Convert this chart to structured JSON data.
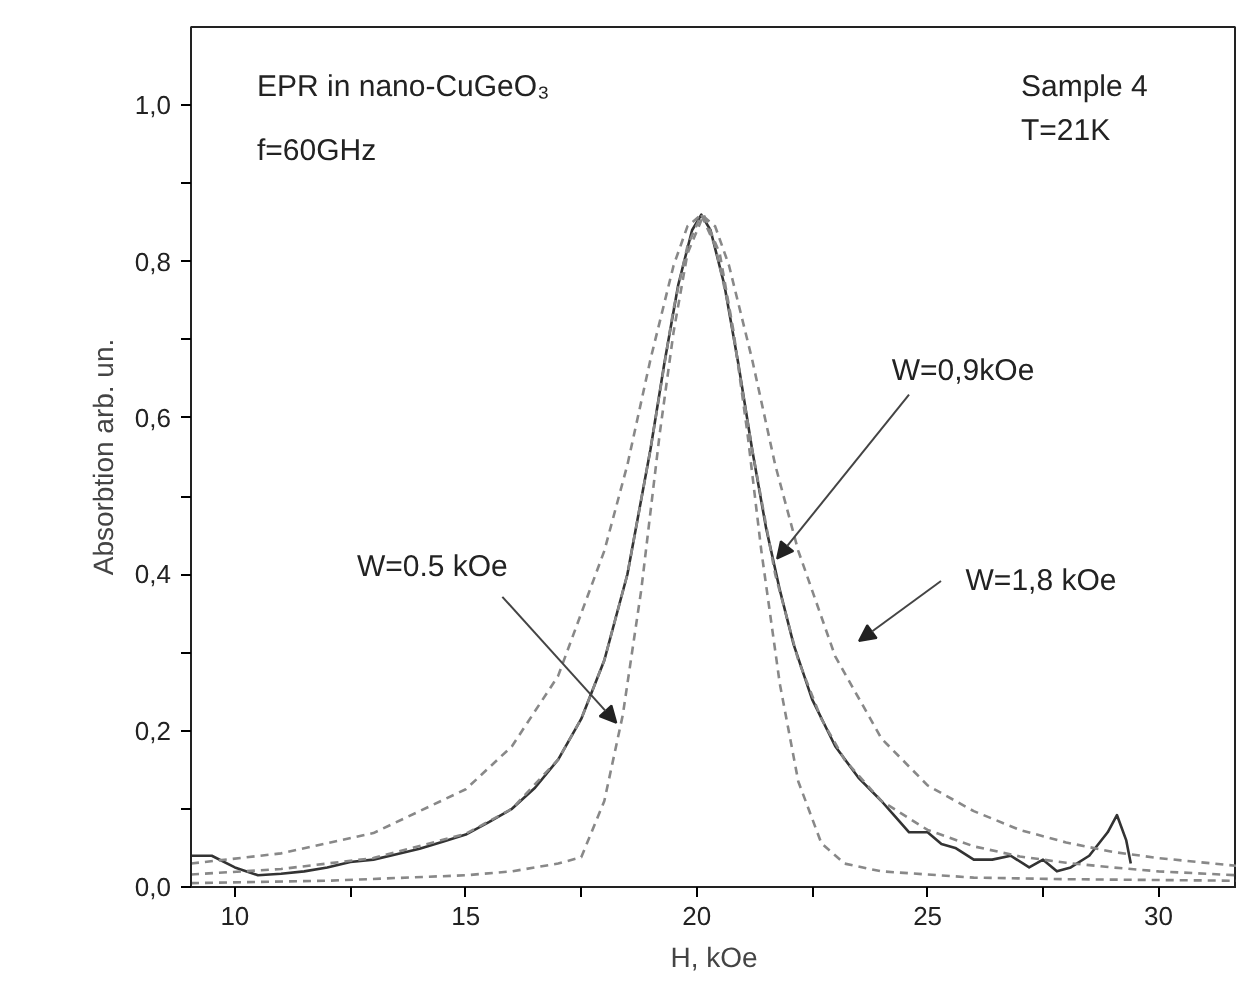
{
  "chart_data": {
    "type": "line",
    "xlabel": "H, kOe",
    "ylabel": "Absorbtion arb. un.",
    "xlim": [
      9.05,
      31.7
    ],
    "ylim": [
      0,
      1.1
    ],
    "xticks": [
      10,
      {
        "value": 12.5,
        "label": null
      },
      15,
      {
        "value": 17.5,
        "label": null
      },
      20,
      {
        "value": 22.5,
        "label": null
      },
      25,
      {
        "value": 27.5,
        "label": null
      },
      30
    ],
    "yticks": [
      {
        "value": 0,
        "label": "0,0"
      },
      {
        "value": 0.1,
        "label": null
      },
      {
        "value": 0.2,
        "label": "0,2"
      },
      {
        "value": 0.3,
        "label": null
      },
      {
        "value": 0.4,
        "label": "0,4"
      },
      {
        "value": 0.5,
        "label": null
      },
      {
        "value": 0.6,
        "label": "0,6"
      },
      {
        "value": 0.7,
        "label": null
      },
      {
        "value": 0.8,
        "label": "0,8"
      },
      {
        "value": 0.9,
        "label": null
      },
      {
        "value": 1.0,
        "label": "1,0"
      }
    ],
    "grid": false,
    "marker": "none",
    "series": [
      {
        "color": "#333333",
        "line_style": "solid",
        "x": [
          9.05,
          9.5,
          10,
          10.5,
          11,
          11.5,
          12,
          12.5,
          13,
          13.5,
          14,
          14.5,
          15,
          15.5,
          16,
          16.5,
          17,
          17.5,
          18,
          18.5,
          19,
          19.3,
          19.6,
          19.9,
          20.1,
          20.3,
          20.6,
          20.9,
          21.2,
          21.5,
          21.8,
          22.1,
          22.5,
          23,
          23.5,
          24,
          24.3,
          24.6,
          25,
          25.3,
          25.6,
          26,
          26.4,
          26.8,
          27.2,
          27.5,
          27.8,
          28.1,
          28.5,
          28.9,
          29.1,
          29.3,
          29.4
        ],
        "values": [
          0.04,
          0.04,
          0.025,
          0.015,
          0.017,
          0.02,
          0.025,
          0.032,
          0.035,
          0.042,
          0.049,
          0.058,
          0.067,
          0.083,
          0.1,
          0.127,
          0.163,
          0.215,
          0.29,
          0.4,
          0.56,
          0.67,
          0.77,
          0.84,
          0.86,
          0.84,
          0.77,
          0.67,
          0.56,
          0.46,
          0.38,
          0.31,
          0.24,
          0.18,
          0.14,
          0.11,
          0.09,
          0.07,
          0.07,
          0.055,
          0.05,
          0.035,
          0.035,
          0.04,
          0.025,
          0.035,
          0.02,
          0.025,
          0.04,
          0.07,
          0.092,
          0.06,
          0.03
        ]
      },
      {
        "color": "#888888",
        "line_style": "dashed",
        "x": [
          9.05,
          11,
          13,
          15,
          16,
          17,
          17.5,
          18,
          18.5,
          19,
          19.5,
          19.8,
          20.1,
          20.4,
          20.7,
          21.2,
          21.7,
          22.2,
          22.7,
          23.2,
          24,
          25,
          26,
          27,
          28,
          29,
          30,
          31.7
        ],
        "values": [
          0.016,
          0.023,
          0.037,
          0.068,
          0.1,
          0.163,
          0.215,
          0.29,
          0.4,
          0.56,
          0.74,
          0.82,
          0.86,
          0.82,
          0.74,
          0.56,
          0.4,
          0.29,
          0.215,
          0.163,
          0.11,
          0.073,
          0.052,
          0.039,
          0.031,
          0.025,
          0.02,
          0.015
        ]
      },
      {
        "color": "#888888",
        "line_style": "dashed",
        "x": [
          9.05,
          11,
          13,
          15,
          16,
          17,
          18,
          18.5,
          19,
          19.5,
          19.8,
          20.1,
          20.4,
          20.7,
          21.2,
          21.7,
          22.2,
          23,
          24,
          25,
          26,
          27,
          28,
          29,
          30,
          31.7
        ],
        "values": [
          0.03,
          0.043,
          0.069,
          0.125,
          0.18,
          0.27,
          0.43,
          0.54,
          0.675,
          0.795,
          0.845,
          0.86,
          0.845,
          0.795,
          0.675,
          0.54,
          0.43,
          0.295,
          0.19,
          0.13,
          0.097,
          0.073,
          0.057,
          0.045,
          0.037,
          0.027
        ]
      },
      {
        "color": "#888888",
        "line_style": "dashed",
        "x": [
          9.05,
          12,
          15,
          16,
          17,
          17.5,
          18,
          18.4,
          18.8,
          19.2,
          19.5,
          19.8,
          20.15,
          20.5,
          20.8,
          21.1,
          21.4,
          21.8,
          22.2,
          22.7,
          23.2,
          24,
          26,
          28,
          31.7
        ],
        "values": [
          0.005,
          0.008,
          0.015,
          0.02,
          0.03,
          0.038,
          0.11,
          0.22,
          0.38,
          0.58,
          0.71,
          0.81,
          0.86,
          0.81,
          0.71,
          0.58,
          0.43,
          0.26,
          0.135,
          0.056,
          0.03,
          0.02,
          0.012,
          0.01,
          0.008
        ]
      }
    ],
    "annotations": [
      "EPR in nano-CuGeO₃",
      "f=60GHz",
      "Sample 4",
      "T=21K",
      "W=1,8 kOe",
      {
        "text": "W=0.5 kOe",
        "x": 18.26,
        "y": 0.21
      },
      {
        "text": "W=0,9kOe",
        "x": 21.74,
        "y": 0.42
      }
    ]
  }
}
